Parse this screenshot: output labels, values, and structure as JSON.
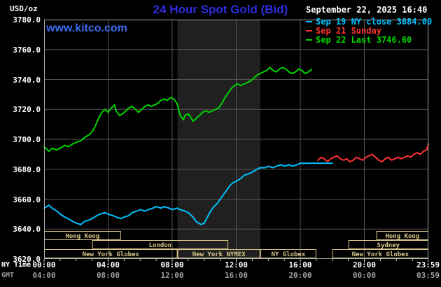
{
  "header": {
    "unit_label": "USD/oz",
    "title": "24 Hour Spot Gold (Bid)",
    "datetime": "September 22, 2025 16:40",
    "watermark": "www.kitco.com",
    "legend": [
      {
        "label": "Sep 19 NY close 3684.00",
        "color": "#00c0ff"
      },
      {
        "label": "Sep 21 Sunday",
        "color": "#ff3232"
      },
      {
        "label": "Sep 22 Last 3746.60",
        "color": "#00d400"
      }
    ]
  },
  "axis": {
    "ny_label": "NY Time",
    "gmt_label": "GMT",
    "y_ticks": [
      "3780.0",
      "3760.0",
      "3740.0",
      "3720.0",
      "3700.0",
      "3680.0",
      "3660.0",
      "3640.0",
      "3620.0"
    ],
    "ny_ticks": [
      "00:00",
      "04:00",
      "08:00",
      "12:00",
      "16:00",
      "20:00",
      "23:59"
    ],
    "gmt_ticks": [
      "04:00",
      "08:00",
      "12:00",
      "16:00",
      "20:00",
      "00:00",
      "03:59"
    ]
  },
  "colors": {
    "background": "#000000",
    "plot_border": "#a8a8a8",
    "grid": "#555555",
    "nymex_band": "#202020",
    "session": "#d9c78c",
    "title": "#2d2de0",
    "kitco": "#3a6bef",
    "axis_text": "#ffffff",
    "gmt_text": "#9f9f9f",
    "tick": "#cccccc"
  },
  "chart_data": {
    "type": "line",
    "title": "24 Hour Spot Gold (Bid)",
    "ylabel": "USD/oz",
    "ylim": [
      3620,
      3780
    ],
    "y_tick_step": 20,
    "xlim_hours": [
      0,
      24
    ],
    "tick_hours": [
      0,
      4,
      8,
      12,
      16,
      20,
      23.983
    ],
    "grid": true,
    "legend_position": "top-right",
    "nymex_band_hours": [
      8.33,
      13.5
    ],
    "series": [
      {
        "id": "sep19",
        "name": "Sep 19 NY close 3684.00",
        "color": "#00c0ff",
        "points": [
          [
            0,
            3654
          ],
          [
            0.3,
            3656
          ],
          [
            0.5,
            3654
          ],
          [
            0.8,
            3652
          ],
          [
            1,
            3650
          ],
          [
            1.3,
            3648
          ],
          [
            1.5,
            3647
          ],
          [
            1.8,
            3645
          ],
          [
            2,
            3644
          ],
          [
            2.3,
            3643
          ],
          [
            2.5,
            3645
          ],
          [
            2.8,
            3646
          ],
          [
            3,
            3647
          ],
          [
            3.3,
            3649
          ],
          [
            3.5,
            3650
          ],
          [
            3.8,
            3651
          ],
          [
            4,
            3650
          ],
          [
            4.3,
            3649
          ],
          [
            4.5,
            3648
          ],
          [
            4.8,
            3647
          ],
          [
            5,
            3648
          ],
          [
            5.3,
            3649
          ],
          [
            5.5,
            3651
          ],
          [
            5.8,
            3652
          ],
          [
            6,
            3653
          ],
          [
            6.3,
            3652
          ],
          [
            6.5,
            3653
          ],
          [
            6.8,
            3654
          ],
          [
            7,
            3655
          ],
          [
            7.3,
            3654
          ],
          [
            7.5,
            3655
          ],
          [
            7.8,
            3654
          ],
          [
            8,
            3653
          ],
          [
            8.3,
            3654
          ],
          [
            8.5,
            3653
          ],
          [
            8.8,
            3652
          ],
          [
            9,
            3651
          ],
          [
            9.3,
            3648
          ],
          [
            9.5,
            3645
          ],
          [
            9.8,
            3643
          ],
          [
            10,
            3644
          ],
          [
            10.2,
            3648
          ],
          [
            10.4,
            3652
          ],
          [
            10.6,
            3655
          ],
          [
            10.8,
            3657
          ],
          [
            11,
            3660
          ],
          [
            11.2,
            3663
          ],
          [
            11.4,
            3666
          ],
          [
            11.6,
            3669
          ],
          [
            11.8,
            3671
          ],
          [
            12,
            3672
          ],
          [
            12.3,
            3674
          ],
          [
            12.5,
            3676
          ],
          [
            12.8,
            3677
          ],
          [
            13,
            3678
          ],
          [
            13.3,
            3680
          ],
          [
            13.5,
            3681
          ],
          [
            13.8,
            3681
          ],
          [
            14,
            3682
          ],
          [
            14.3,
            3681
          ],
          [
            14.5,
            3682
          ],
          [
            14.8,
            3683
          ],
          [
            15,
            3682
          ],
          [
            15.3,
            3683
          ],
          [
            15.5,
            3682
          ],
          [
            15.8,
            3683
          ],
          [
            16,
            3684
          ],
          [
            16.5,
            3684
          ],
          [
            17,
            3684
          ],
          [
            17.5,
            3684
          ],
          [
            18,
            3684
          ]
        ]
      },
      {
        "id": "sep21",
        "name": "Sep 21 Sunday",
        "color": "#ff3232",
        "points": [
          [
            17.1,
            3686
          ],
          [
            17.3,
            3688
          ],
          [
            17.5,
            3687
          ],
          [
            17.7,
            3685
          ],
          [
            17.9,
            3687
          ],
          [
            18.1,
            3688
          ],
          [
            18.3,
            3689
          ],
          [
            18.5,
            3687
          ],
          [
            18.7,
            3686
          ],
          [
            18.9,
            3687
          ],
          [
            19.1,
            3685
          ],
          [
            19.3,
            3686
          ],
          [
            19.5,
            3688
          ],
          [
            19.7,
            3687
          ],
          [
            19.9,
            3686
          ],
          [
            20.1,
            3688
          ],
          [
            20.3,
            3689
          ],
          [
            20.5,
            3690
          ],
          [
            20.7,
            3688
          ],
          [
            20.9,
            3686
          ],
          [
            21.1,
            3685
          ],
          [
            21.3,
            3687
          ],
          [
            21.5,
            3688
          ],
          [
            21.7,
            3686
          ],
          [
            21.9,
            3687
          ],
          [
            22.1,
            3688
          ],
          [
            22.3,
            3687
          ],
          [
            22.5,
            3688
          ],
          [
            22.7,
            3689
          ],
          [
            22.9,
            3688
          ],
          [
            23.1,
            3690
          ],
          [
            23.3,
            3691
          ],
          [
            23.5,
            3690
          ],
          [
            23.7,
            3692
          ],
          [
            23.9,
            3693
          ],
          [
            24,
            3697
          ]
        ]
      },
      {
        "id": "sep22",
        "name": "Sep 22 Last 3746.60",
        "color": "#00d400",
        "points": [
          [
            0,
            3695
          ],
          [
            0.3,
            3692
          ],
          [
            0.5,
            3694
          ],
          [
            0.8,
            3693
          ],
          [
            1,
            3694
          ],
          [
            1.3,
            3696
          ],
          [
            1.5,
            3695
          ],
          [
            1.8,
            3697
          ],
          [
            2,
            3698
          ],
          [
            2.3,
            3699
          ],
          [
            2.5,
            3701
          ],
          [
            2.8,
            3703
          ],
          [
            3,
            3705
          ],
          [
            3.2,
            3709
          ],
          [
            3.4,
            3714
          ],
          [
            3.6,
            3718
          ],
          [
            3.8,
            3720
          ],
          [
            4,
            3718
          ],
          [
            4.2,
            3721
          ],
          [
            4.4,
            3723
          ],
          [
            4.5,
            3719
          ],
          [
            4.7,
            3716
          ],
          [
            4.9,
            3717
          ],
          [
            5.1,
            3719
          ],
          [
            5.3,
            3721
          ],
          [
            5.5,
            3722
          ],
          [
            5.7,
            3720
          ],
          [
            5.9,
            3718
          ],
          [
            6.1,
            3720
          ],
          [
            6.3,
            3722
          ],
          [
            6.5,
            3723
          ],
          [
            6.7,
            3722
          ],
          [
            6.9,
            3723
          ],
          [
            7.1,
            3724
          ],
          [
            7.3,
            3726
          ],
          [
            7.5,
            3727
          ],
          [
            7.7,
            3726
          ],
          [
            7.9,
            3728
          ],
          [
            8.1,
            3727
          ],
          [
            8.3,
            3724
          ],
          [
            8.5,
            3716
          ],
          [
            8.7,
            3713
          ],
          [
            8.8,
            3716
          ],
          [
            9,
            3717
          ],
          [
            9.2,
            3714
          ],
          [
            9.3,
            3712
          ],
          [
            9.5,
            3714
          ],
          [
            9.7,
            3716
          ],
          [
            9.9,
            3718
          ],
          [
            10.1,
            3719
          ],
          [
            10.3,
            3718
          ],
          [
            10.5,
            3719
          ],
          [
            10.7,
            3720
          ],
          [
            10.9,
            3721
          ],
          [
            11.1,
            3724
          ],
          [
            11.3,
            3728
          ],
          [
            11.5,
            3731
          ],
          [
            11.7,
            3734
          ],
          [
            11.9,
            3736
          ],
          [
            12.1,
            3737
          ],
          [
            12.3,
            3736
          ],
          [
            12.5,
            3737
          ],
          [
            12.7,
            3738
          ],
          [
            12.9,
            3739
          ],
          [
            13.1,
            3741
          ],
          [
            13.3,
            3743
          ],
          [
            13.5,
            3744
          ],
          [
            13.7,
            3745
          ],
          [
            13.9,
            3746
          ],
          [
            14.1,
            3748
          ],
          [
            14.3,
            3746
          ],
          [
            14.5,
            3745
          ],
          [
            14.7,
            3747
          ],
          [
            14.9,
            3748
          ],
          [
            15.1,
            3747
          ],
          [
            15.3,
            3745
          ],
          [
            15.5,
            3744
          ],
          [
            15.7,
            3745
          ],
          [
            15.9,
            3747
          ],
          [
            16.1,
            3746
          ],
          [
            16.3,
            3744
          ],
          [
            16.5,
            3745
          ],
          [
            16.7,
            3746.6
          ]
        ]
      }
    ],
    "sessions": [
      {
        "row": 0,
        "label": "Hong Kong",
        "start": 0,
        "end": 4.8
      },
      {
        "row": 0,
        "label": "Hong Kong",
        "start": 20.75,
        "end": 24
      },
      {
        "row": 1,
        "label": "London",
        "start": 3,
        "end": 11.5
      },
      {
        "row": 1,
        "label": "Sydney",
        "start": 19,
        "end": 24
      },
      {
        "row": 2,
        "label": "New York Globex",
        "start": 0,
        "end": 8.33
      },
      {
        "row": 2,
        "label": "New York NYMEX",
        "start": 8.33,
        "end": 13.5
      },
      {
        "row": 2,
        "label": "NY Globex",
        "start": 13.5,
        "end": 17
      },
      {
        "row": 2,
        "label": "New York Globex",
        "start": 18,
        "end": 24
      }
    ]
  }
}
